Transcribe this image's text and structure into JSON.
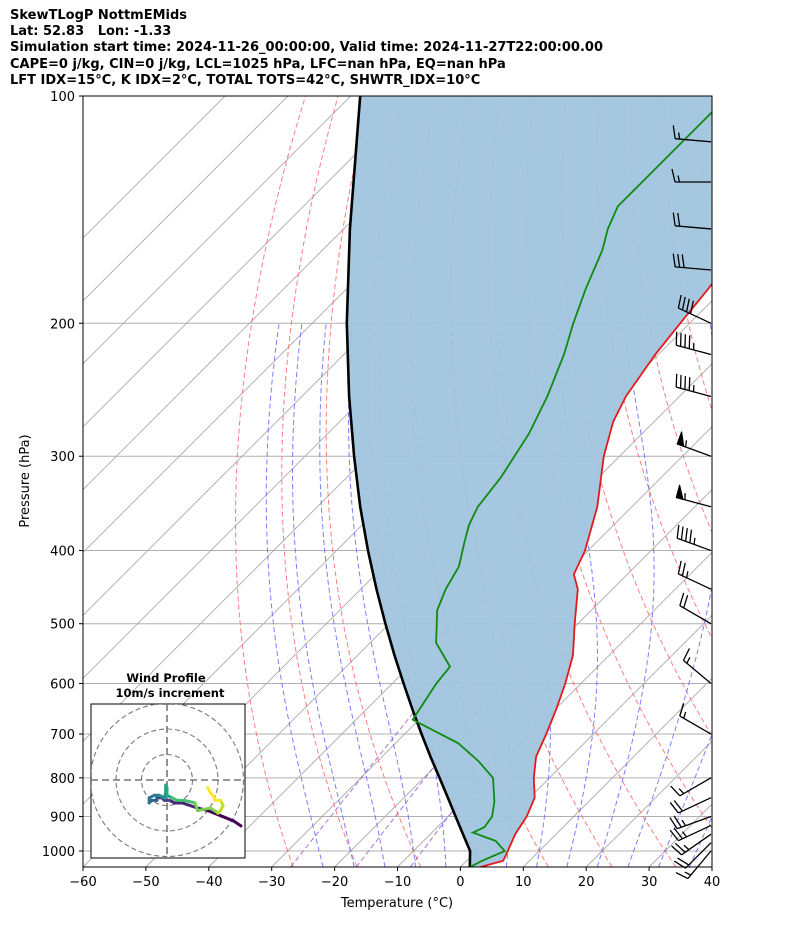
{
  "header": {
    "line1": "SkewTLogP NottmEMids",
    "line2": "Lat: 52.83   Lon: -1.33",
    "line3": "Simulation start time: 2024-11-26_00:00:00, Valid time: 2024-11-27T22:00:00.00",
    "line4": "CAPE=0 j/kg, CIN=0 j/kg, LCL=1025 hPa, LFC=nan hPa, EQ=nan hPa",
    "line5": "LFT IDX=15°C, K IDX=2°C, TOTAL TOTS=42°C, SHWTR_IDX=10°C"
  },
  "chart_data": {
    "type": "skewt",
    "xlabel": "Temperature (°C)",
    "ylabel": "Pressure (hPa)",
    "xlim": [
      -60,
      40
    ],
    "ylim": [
      1050,
      100
    ],
    "x_ticks": [
      "−60",
      "−50",
      "−40",
      "−30",
      "−20",
      "−10",
      "0",
      "10",
      "20",
      "30",
      "40"
    ],
    "x_tick_values": [
      -60,
      -50,
      -40,
      -30,
      -20,
      -10,
      0,
      10,
      20,
      30,
      40
    ],
    "y_ticks": [
      "100",
      "200",
      "300",
      "400",
      "500",
      "600",
      "700",
      "800",
      "900",
      "1000"
    ],
    "y_tick_values": [
      100,
      200,
      300,
      400,
      500,
      600,
      700,
      800,
      900,
      1000
    ],
    "grid": true,
    "colors": {
      "temperature": "#e31a1c",
      "dewpoint": "#108a10",
      "parcel": "#000000",
      "shade": "#a0c4de",
      "dry_adiabat": "#ff6666",
      "moist_adiabat": "#6666ff",
      "isotherm": "#aaaaaa",
      "mixing_ratio": "#9b4dca"
    },
    "temperature": [
      [
        1050,
        3.2
      ],
      [
        1030,
        5.8
      ],
      [
        1000,
        5.0
      ],
      [
        950,
        3.5
      ],
      [
        900,
        2.5
      ],
      [
        850,
        0.8
      ],
      [
        800,
        -2.5
      ],
      [
        750,
        -5.5
      ],
      [
        700,
        -7.5
      ],
      [
        650,
        -9.8
      ],
      [
        600,
        -12.5
      ],
      [
        550,
        -15.8
      ],
      [
        500,
        -20.5
      ],
      [
        450,
        -25.5
      ],
      [
        430,
        -28.5
      ],
      [
        400,
        -30.5
      ],
      [
        350,
        -35.5
      ],
      [
        300,
        -42.5
      ],
      [
        270,
        -46.5
      ],
      [
        250,
        -48.5
      ],
      [
        220,
        -50.5
      ],
      [
        200,
        -51.5
      ],
      [
        180,
        -52.5
      ],
      [
        160,
        -54.0
      ],
      [
        150,
        -56.0
      ],
      [
        140,
        -58.5
      ],
      [
        130,
        -62.0
      ],
      [
        120,
        -65.5
      ],
      [
        110,
        -70.0
      ],
      [
        100,
        -74.0
      ]
    ],
    "dewpoint": [
      [
        1050,
        1.5
      ],
      [
        1030,
        2.5
      ],
      [
        1000,
        4.5
      ],
      [
        970,
        1.5
      ],
      [
        945,
        -3.5
      ],
      [
        930,
        -2.5
      ],
      [
        900,
        -3.0
      ],
      [
        860,
        -5.0
      ],
      [
        800,
        -9.0
      ],
      [
        760,
        -14.0
      ],
      [
        720,
        -20.0
      ],
      [
        670,
        -31.0
      ],
      [
        600,
        -33.0
      ],
      [
        570,
        -33.5
      ],
      [
        530,
        -39.5
      ],
      [
        480,
        -44.5
      ],
      [
        450,
        -46.5
      ],
      [
        420,
        -48.0
      ],
      [
        390,
        -51.0
      ],
      [
        370,
        -53.0
      ],
      [
        350,
        -54.5
      ],
      [
        320,
        -55.5
      ],
      [
        280,
        -58.0
      ],
      [
        250,
        -61.0
      ],
      [
        220,
        -65.0
      ],
      [
        200,
        -68.5
      ],
      [
        180,
        -72.0
      ],
      [
        160,
        -75.5
      ],
      [
        150,
        -78.0
      ],
      [
        140,
        -80.0
      ],
      [
        130,
        -80.0
      ],
      [
        120,
        -80.0
      ],
      [
        110,
        -80.0
      ],
      [
        100,
        -80.0
      ]
    ],
    "parcel": [
      [
        1050,
        1.5
      ],
      [
        1000,
        -1.0
      ],
      [
        950,
        -4.8
      ],
      [
        900,
        -8.8
      ],
      [
        850,
        -13.0
      ],
      [
        800,
        -17.5
      ],
      [
        750,
        -22.3
      ],
      [
        700,
        -27.3
      ],
      [
        650,
        -32.6
      ],
      [
        600,
        -38.2
      ],
      [
        550,
        -44.2
      ],
      [
        500,
        -50.6
      ],
      [
        450,
        -57.5
      ],
      [
        400,
        -65.0
      ],
      [
        350,
        -73.2
      ],
      [
        300,
        -82.2
      ],
      [
        250,
        -92.5
      ],
      [
        200,
        -104.5
      ],
      [
        150,
        -119.0
      ],
      [
        100,
        -138.5
      ]
    ],
    "wind_barbs": [
      {
        "p": 1000,
        "speed_kt": 15,
        "dir_deg": 220
      },
      {
        "p": 975,
        "speed_kt": 20,
        "dir_deg": 225
      },
      {
        "p": 950,
        "speed_kt": 25,
        "dir_deg": 235
      },
      {
        "p": 925,
        "speed_kt": 25,
        "dir_deg": 245
      },
      {
        "p": 900,
        "speed_kt": 25,
        "dir_deg": 250
      },
      {
        "p": 850,
        "speed_kt": 20,
        "dir_deg": 245
      },
      {
        "p": 800,
        "speed_kt": 15,
        "dir_deg": 240
      },
      {
        "p": 700,
        "speed_kt": 15,
        "dir_deg": 300
      },
      {
        "p": 600,
        "speed_kt": 15,
        "dir_deg": 310
      },
      {
        "p": 500,
        "speed_kt": 20,
        "dir_deg": 300
      },
      {
        "p": 450,
        "speed_kt": 25,
        "dir_deg": 295
      },
      {
        "p": 400,
        "speed_kt": 45,
        "dir_deg": 290
      },
      {
        "p": 350,
        "speed_kt": 55,
        "dir_deg": 285
      },
      {
        "p": 300,
        "speed_kt": 55,
        "dir_deg": 290
      },
      {
        "p": 250,
        "speed_kt": 45,
        "dir_deg": 285
      },
      {
        "p": 220,
        "speed_kt": 45,
        "dir_deg": 285
      },
      {
        "p": 200,
        "speed_kt": 40,
        "dir_deg": 295
      },
      {
        "p": 170,
        "speed_kt": 30,
        "dir_deg": 275
      },
      {
        "p": 150,
        "speed_kt": 20,
        "dir_deg": 275
      },
      {
        "p": 130,
        "speed_kt": 15,
        "dir_deg": 270
      },
      {
        "p": 115,
        "speed_kt": 15,
        "dir_deg": 275
      }
    ],
    "hodograph": {
      "title": "Wind Profile",
      "subtitle": "10m/s increment",
      "ring_step_ms": 10,
      "rings": 3,
      "range_ms": 30,
      "points_uv": [
        [
          29,
          -18
        ],
        [
          26,
          -16
        ],
        [
          21,
          -14
        ],
        [
          16,
          -12
        ],
        [
          12,
          -11
        ],
        [
          6,
          -9
        ],
        [
          3,
          -9
        ],
        [
          1,
          -8
        ],
        [
          -1,
          -8
        ],
        [
          -2,
          -7
        ],
        [
          -4,
          -7
        ],
        [
          -4,
          -8
        ],
        [
          -6,
          -8
        ],
        [
          -7,
          -9
        ],
        [
          -7,
          -7
        ],
        [
          -5,
          -6
        ],
        [
          -3,
          -6
        ],
        [
          -1,
          -7
        ],
        [
          -0.5,
          -5
        ],
        [
          -0.5,
          -2
        ],
        [
          0,
          -3
        ],
        [
          0,
          -6
        ],
        [
          2,
          -7
        ],
        [
          4,
          -8
        ],
        [
          7,
          -8
        ],
        [
          11,
          -9
        ],
        [
          12,
          -12
        ],
        [
          17,
          -11
        ],
        [
          20,
          -13
        ],
        [
          21,
          -12
        ],
        [
          22,
          -10
        ],
        [
          21,
          -8
        ],
        [
          19,
          -8
        ],
        [
          18,
          -6
        ],
        [
          17,
          -5
        ],
        [
          16,
          -3
        ]
      ]
    }
  }
}
